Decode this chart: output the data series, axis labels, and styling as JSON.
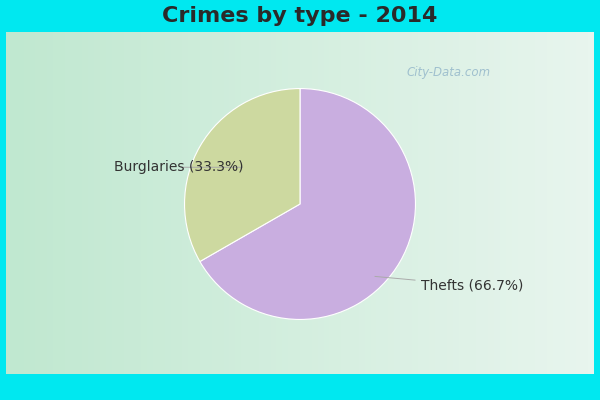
{
  "title": "Crimes by type - 2014",
  "slices": [
    {
      "label": "Thefts (66.7%)",
      "value": 66.7,
      "color": "#c9aee0"
    },
    {
      "label": "Burglaries (33.3%)",
      "value": 33.3,
      "color": "#cdd9a0"
    }
  ],
  "cyan_bar_color": "#00e8f0",
  "bg_color_left": "#c8ead8",
  "bg_color_right": "#e8f8f0",
  "title_fontsize": 16,
  "label_fontsize": 10,
  "watermark": "City-Data.com",
  "title_color": "#2a2a2a"
}
